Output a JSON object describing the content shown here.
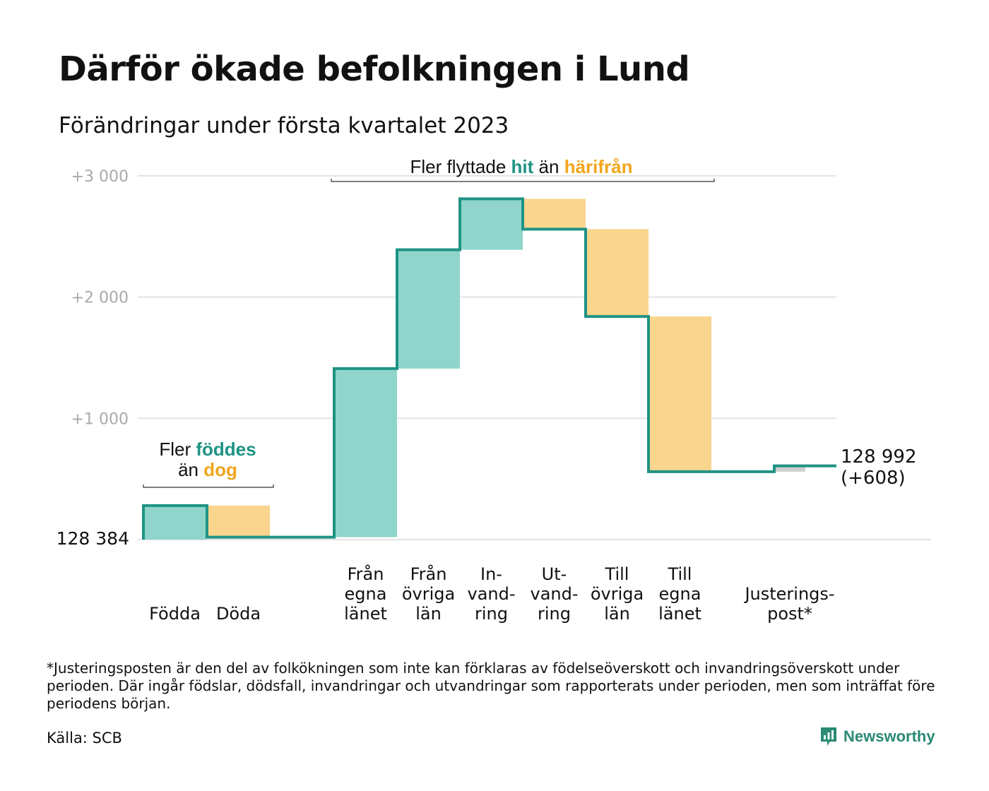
{
  "title": "Därför ökade befolkningen i Lund",
  "subtitle": "Förändringar under första kvartalet 2023",
  "colors": {
    "increase": "#8fd5cb",
    "decrease": "#f9d58e",
    "adjustment": "#cfcfcf",
    "line": "#1f9384",
    "teal_text": "#1f9384",
    "orange_text": "#f2a51d",
    "grid": "#e3e3e3",
    "tick": "#a9a9a9"
  },
  "annotations": {
    "births": {
      "prefix": "Fler",
      "highlight1": "föddes",
      "middle": "än",
      "highlight2": "dog"
    },
    "migration": {
      "prefix": "Fler flyttade",
      "highlight1": "hit",
      "middle": "än",
      "highlight2": "härifrån"
    }
  },
  "start_label": "128 384",
  "end_label_line1": "128 992",
  "end_label_line2": "(+608)",
  "chart_data": {
    "type": "waterfall",
    "baseline": 128384,
    "y_ticks": [
      {
        "value": 1000,
        "label": "+1 000"
      },
      {
        "value": 2000,
        "label": "+2 000"
      },
      {
        "value": 3000,
        "label": "+3 000"
      }
    ],
    "ylim": [
      0,
      3000
    ],
    "steps": [
      {
        "name": "births",
        "label_lines": [
          "Födda"
        ],
        "start": 0,
        "end": 280,
        "kind": "increase"
      },
      {
        "name": "deaths",
        "label_lines": [
          "Döda"
        ],
        "start": 280,
        "end": 20,
        "kind": "decrease"
      },
      {
        "name": "from-own-county",
        "label_lines": [
          "Från",
          "egna",
          "länet"
        ],
        "start": 20,
        "end": 1410,
        "kind": "increase"
      },
      {
        "name": "from-other-counties",
        "label_lines": [
          "Från",
          "övriga",
          "län"
        ],
        "start": 1410,
        "end": 2390,
        "kind": "increase"
      },
      {
        "name": "immigration",
        "label_lines": [
          "In-",
          "vand-",
          "ring"
        ],
        "start": 2390,
        "end": 2810,
        "kind": "increase"
      },
      {
        "name": "emigration",
        "label_lines": [
          "Ut-",
          "vand-",
          "ring"
        ],
        "start": 2810,
        "end": 2560,
        "kind": "decrease"
      },
      {
        "name": "to-other-counties",
        "label_lines": [
          "Till",
          "övriga",
          "län"
        ],
        "start": 2560,
        "end": 1840,
        "kind": "decrease"
      },
      {
        "name": "to-own-county",
        "label_lines": [
          "Till",
          "egna",
          "länet"
        ],
        "start": 1840,
        "end": 560,
        "kind": "decrease"
      },
      {
        "name": "adjustment",
        "label_lines": [
          "Justerings-",
          "post*"
        ],
        "start": 560,
        "end": 608,
        "kind": "adjustment"
      }
    ]
  },
  "footnote": "*Justeringsposten är den del av folkökningen som inte kan förklaras av födelseöverskott och invandringsöverskott under perioden. Där ingår födslar, dödsfall, invandringar och utvandringar som rapporterats under perioden, men som inträffat före periodens början.",
  "source": "Källa: SCB",
  "brand": "Newsworthy"
}
